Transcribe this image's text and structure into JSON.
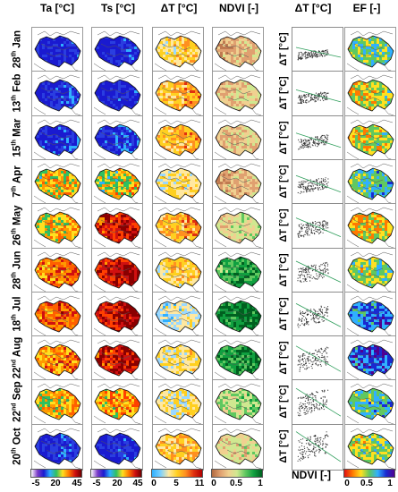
{
  "headers": {
    "ta": "Ta [°C]",
    "ts": "Ts [°C]",
    "dt": "ΔT [°C]",
    "ndvi": "NDVI [-]",
    "scatter": "ΔT [°C]",
    "ef": "EF [-]"
  },
  "rows": [
    {
      "day": "28",
      "suffix": "th",
      "month": "Jan"
    },
    {
      "day": "13",
      "suffix": "th",
      "month": "Feb"
    },
    {
      "day": "15",
      "suffix": "th",
      "month": "Mar"
    },
    {
      "day": "7",
      "suffix": "th",
      "month": "Apr"
    },
    {
      "day": "26",
      "suffix": "th",
      "month": "May"
    },
    {
      "day": "28",
      "suffix": "th",
      "month": "Jun"
    },
    {
      "day": "18",
      "suffix": "th",
      "month": "Jul"
    },
    {
      "day": "22",
      "suffix": "nd",
      "month": "Aug"
    },
    {
      "day": "22",
      "suffix": "nd",
      "month": "Sep"
    },
    {
      "day": "20",
      "suffix": "th",
      "month": "Oct"
    }
  ],
  "scatter_ylabel": "ΔT [°C]",
  "scatter_xlabel": "NDVI [-]",
  "colorbars": {
    "ta": {
      "ticks": [
        "-5",
        "20",
        "45"
      ]
    },
    "ts": {
      "ticks": [
        "-5",
        "20",
        "45"
      ]
    },
    "dt": {
      "ticks": [
        "0",
        "5",
        "11"
      ]
    },
    "ndvi": {
      "ticks": [
        "0",
        "0.5",
        "1"
      ]
    },
    "ef": {
      "ticks": [
        "0",
        "0.5",
        "1"
      ]
    }
  },
  "colors": {
    "map_border": "#9a9a9a",
    "fit_line": "#2e9e5b",
    "scatter_points": "#333333"
  }
}
